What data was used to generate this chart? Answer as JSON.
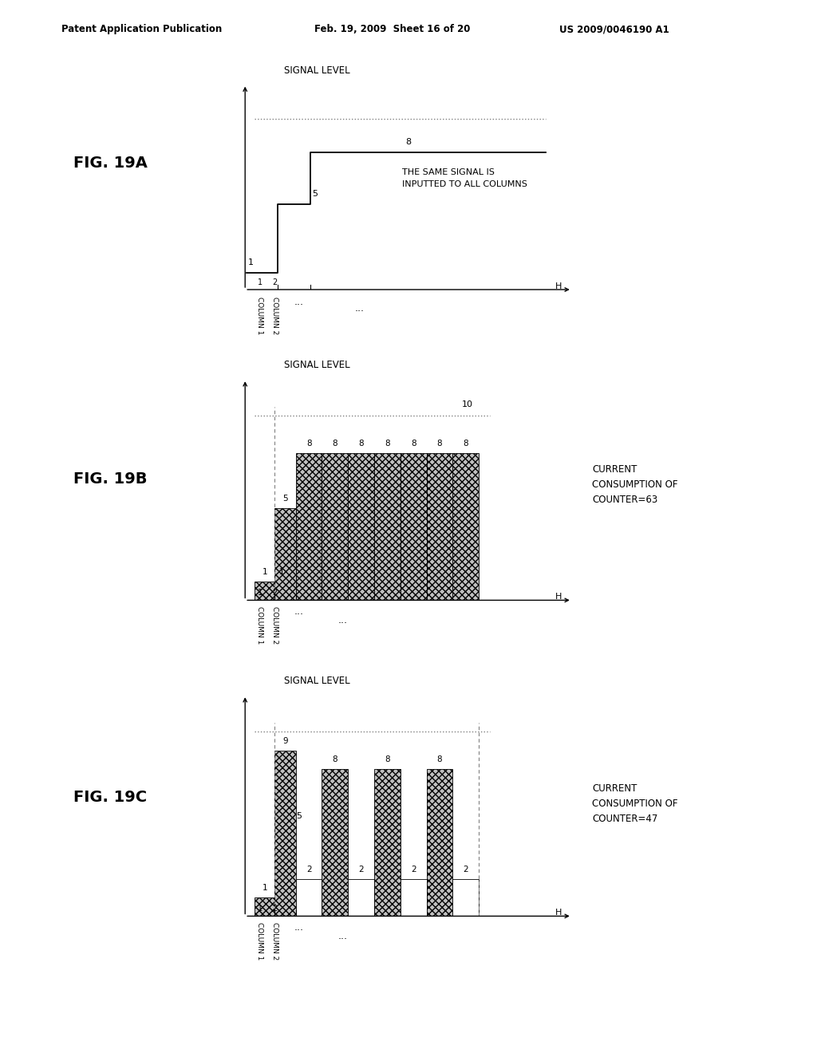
{
  "header_left": "Patent Application Publication",
  "header_mid": "Feb. 19, 2009  Sheet 16 of 20",
  "header_right": "US 2009/0046190 A1",
  "background_color": "#ffffff",
  "panel_A": {
    "title": "SIGNAL LEVEL",
    "xlabel": "H",
    "dotted_level": 10,
    "note_line1": "THE SAME SIGNAL IS",
    "note_line2": "INPUTTED TO ALL COLUMNS"
  },
  "panel_B": {
    "title": "SIGNAL LEVEL",
    "xlabel": "H",
    "dotted_level": 10,
    "counter_label": "CURRENT\nCONSUMPTION OF\nCOUNTER=63"
  },
  "panel_C": {
    "title": "SIGNAL LEVEL",
    "xlabel": "H",
    "dotted_level": 10,
    "counter_label": "CURRENT\nCONSUMPTION OF\nCOUNTER=47"
  }
}
